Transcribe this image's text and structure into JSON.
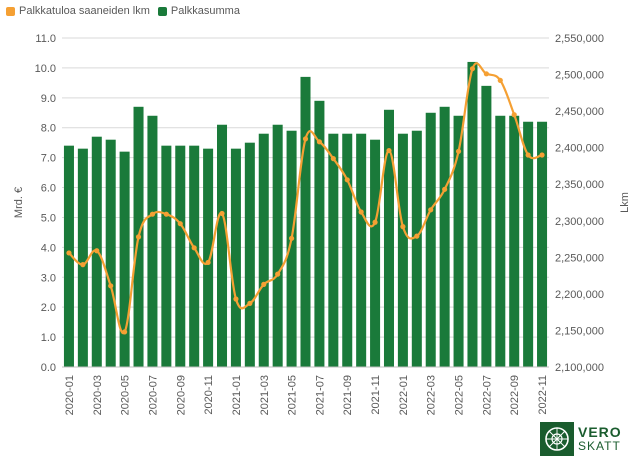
{
  "chart_data": {
    "type": "bar+line",
    "legend": [
      {
        "name": "Palkkatuloa saaneiden lkm",
        "color": "#f5a033",
        "kind": "line"
      },
      {
        "name": "Palkkasumma",
        "color": "#1a7a3a",
        "kind": "bar"
      }
    ],
    "ylabel_left": "Mrd. €",
    "ylabel_right": "Lkm",
    "ylim_left": [
      0,
      11
    ],
    "ylim_right": [
      2100000,
      2550000
    ],
    "left_ticks": [
      "0.0",
      "1.0",
      "2.0",
      "3.0",
      "4.0",
      "5.0",
      "6.0",
      "7.0",
      "8.0",
      "9.0",
      "10.0",
      "11.0"
    ],
    "right_ticks": [
      "2,100,000",
      "2,150,000",
      "2,200,000",
      "2,250,000",
      "2,300,000",
      "2,350,000",
      "2,400,000",
      "2,450,000",
      "2,500,000",
      "2,550,000"
    ],
    "grid": true,
    "legend_position": "top-left",
    "categories": [
      "2020-01",
      "2020-02",
      "2020-03",
      "2020-04",
      "2020-05",
      "2020-06",
      "2020-07",
      "2020-08",
      "2020-09",
      "2020-10",
      "2020-11",
      "2020-12",
      "2021-01",
      "2021-02",
      "2021-03",
      "2021-04",
      "2021-05",
      "2021-06",
      "2021-07",
      "2021-08",
      "2021-09",
      "2021-10",
      "2021-11",
      "2021-12",
      "2022-01",
      "2022-02",
      "2022-03",
      "2022-04",
      "2022-05",
      "2022-06",
      "2022-07",
      "2022-08",
      "2022-09",
      "2022-10",
      "2022-11"
    ],
    "x_tick_labels": [
      "2020-01",
      "2020-03",
      "2020-05",
      "2020-07",
      "2020-09",
      "2020-11",
      "2021-01",
      "2021-03",
      "2021-05",
      "2021-07",
      "2021-09",
      "2021-11",
      "2022-01",
      "2022-03",
      "2022-05",
      "2022-07",
      "2022-09",
      "2022-11"
    ],
    "series": [
      {
        "name": "Palkkasumma",
        "axis": "left",
        "type": "bar",
        "color": "#1a7a3a",
        "values": [
          7.4,
          7.3,
          7.7,
          7.6,
          7.2,
          8.7,
          8.4,
          7.4,
          7.4,
          7.4,
          7.3,
          8.1,
          7.3,
          7.5,
          7.8,
          8.1,
          7.9,
          9.7,
          8.9,
          7.8,
          7.8,
          7.8,
          7.6,
          8.6,
          7.8,
          7.9,
          8.5,
          8.7,
          8.4,
          10.2,
          9.4,
          8.4,
          8.4,
          8.2,
          8.2
        ]
      },
      {
        "name": "Palkkatuloa saaneiden lkm",
        "axis": "right",
        "type": "line",
        "color": "#f5a033",
        "values": [
          2256000,
          2240000,
          2259000,
          2211000,
          2148000,
          2278000,
          2309000,
          2309000,
          2296000,
          2263000,
          2243000,
          2310000,
          2193000,
          2187000,
          2213000,
          2227000,
          2276000,
          2412000,
          2408000,
          2385000,
          2356000,
          2312000,
          2298000,
          2396000,
          2292000,
          2279000,
          2315000,
          2343000,
          2395000,
          2508000,
          2501000,
          2492000,
          2445000,
          2390000,
          2390000
        ]
      }
    ]
  },
  "logo": {
    "line1": "VERO",
    "line2": "SKATT"
  }
}
